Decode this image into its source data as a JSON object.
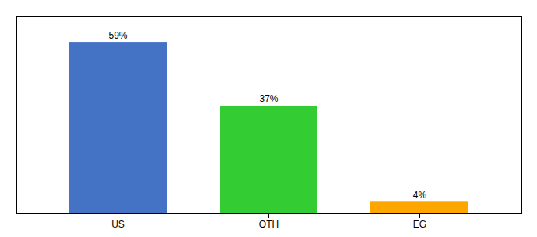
{
  "chart_data": {
    "type": "bar",
    "categories": [
      "US",
      "OTH",
      "EG"
    ],
    "values": [
      59,
      37,
      4
    ],
    "colors": [
      "#4472C4",
      "#33CC33",
      "#FFA500"
    ],
    "ylim": [
      0,
      68
    ],
    "data_labels": true,
    "value_labels": [
      "59%",
      "37%",
      "4%"
    ],
    "tick_labels": "x",
    "grid": false
  }
}
